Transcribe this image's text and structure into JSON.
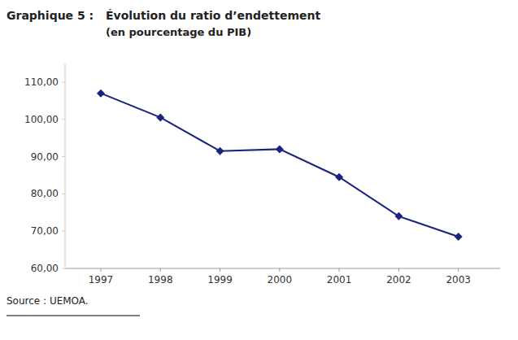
{
  "chart_data": {
    "type": "line",
    "title": "Évolution du ratio d’endettement",
    "subtitle": "(en pourcentage du PIB)",
    "annotations": [
      "Graphique 5 :",
      "Source : UEMOA."
    ],
    "x": [
      1997,
      1998,
      1999,
      2000,
      2001,
      2002,
      2003
    ],
    "values": [
      107.0,
      100.5,
      91.5,
      92.0,
      84.5,
      74.0,
      68.5
    ],
    "color": "#1a237e",
    "marker": "diamond",
    "xlim": [
      1996.4,
      2003.7
    ],
    "xticks": [
      1997,
      1998,
      1999,
      2000,
      2001,
      2002,
      2003
    ],
    "ylim": [
      60,
      115
    ],
    "yticks": [
      {
        "value": 60,
        "label": "60,00"
      },
      {
        "value": 70,
        "label": "70,00"
      },
      {
        "value": 80,
        "label": "80,00"
      },
      {
        "value": 90,
        "label": "90,00"
      },
      {
        "value": 100,
        "label": "100,00"
      },
      {
        "value": 110,
        "label": "110,00"
      }
    ],
    "grid": false
  }
}
